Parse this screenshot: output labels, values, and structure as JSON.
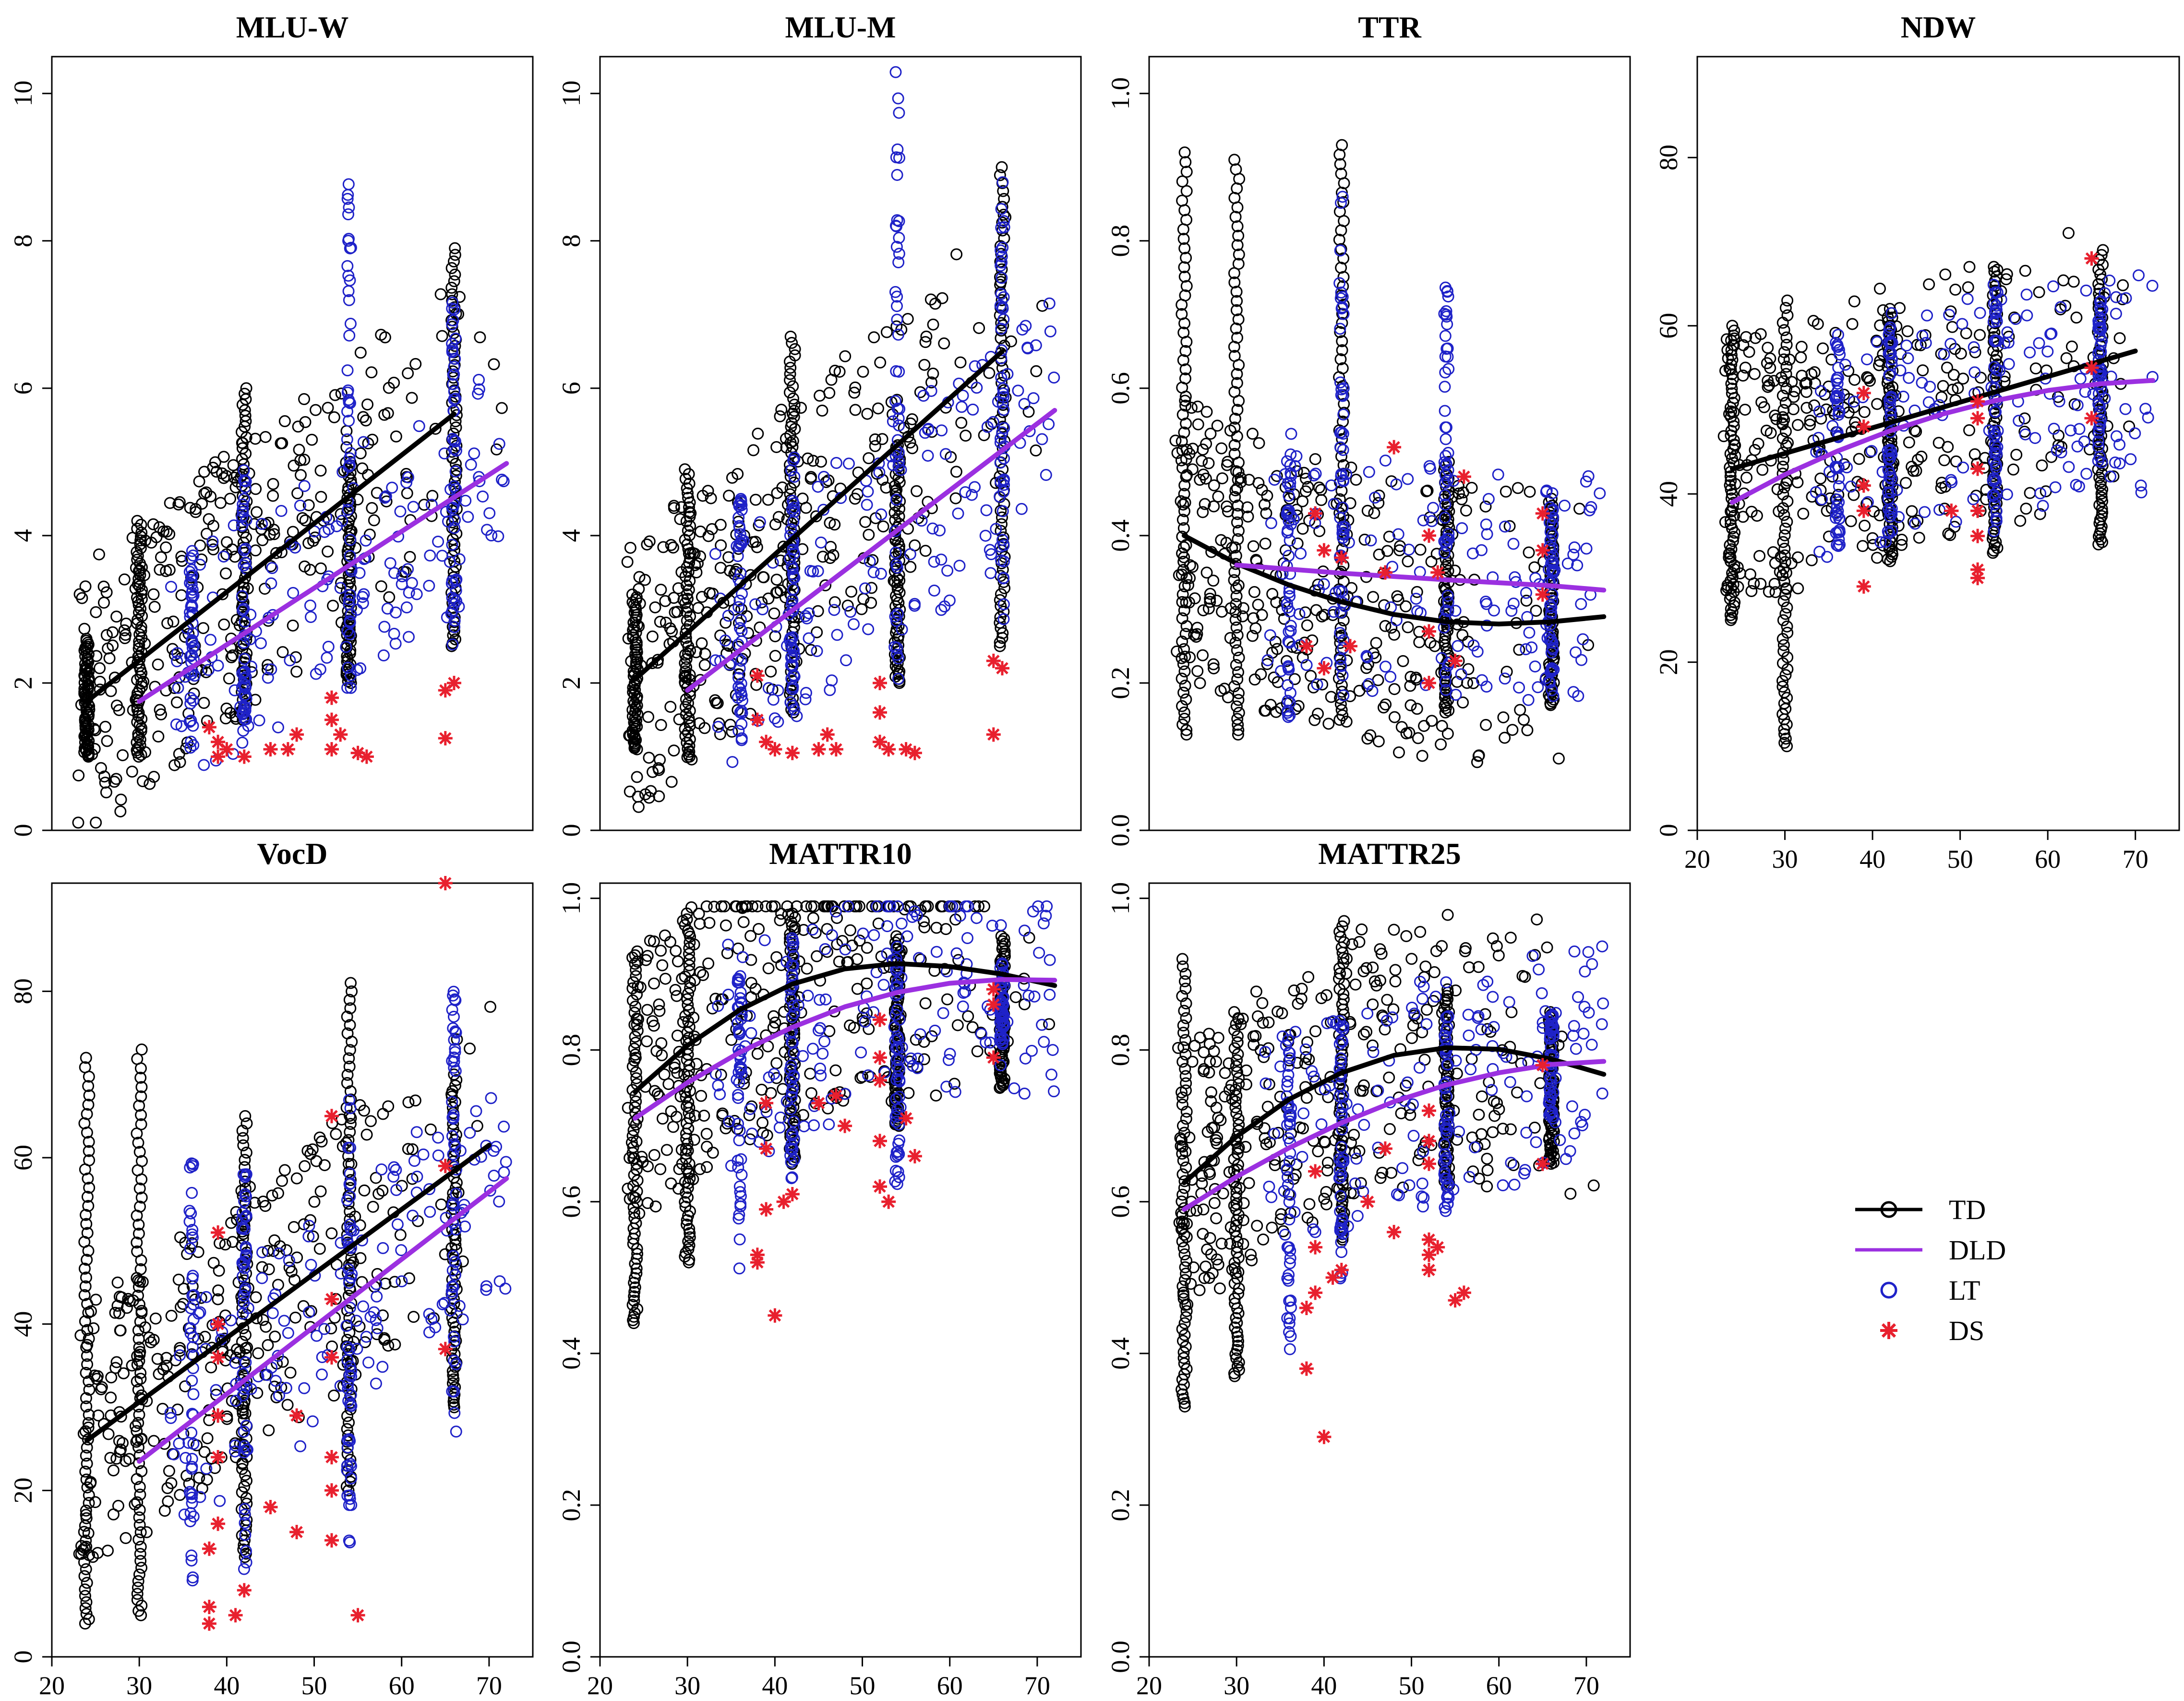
{
  "colors": {
    "TD": "#000000",
    "DLD": "#9b30e0",
    "LT": "#1f22c8",
    "DS": "#e8202e"
  },
  "legend": {
    "items": [
      {
        "label": "TD",
        "kind": "line-circle",
        "color": "#000000"
      },
      {
        "label": "DLD",
        "kind": "line",
        "color": "#9b30e0"
      },
      {
        "label": "LT",
        "kind": "circle",
        "color": "#1f22c8"
      },
      {
        "label": "DS",
        "kind": "star",
        "color": "#e8202e"
      }
    ]
  },
  "chart_data": [
    {
      "type": "scatter",
      "title": "MLU-W",
      "xlim": [
        20,
        75
      ],
      "ylim": [
        0,
        10.5
      ],
      "yticks": [
        0,
        2,
        4,
        6,
        8,
        10
      ],
      "xticks": [],
      "td_columns": [
        {
          "x": 24,
          "ymin": 1.0,
          "ymax": 2.6
        },
        {
          "x": 30,
          "ymin": 1.0,
          "ymax": 4.2
        },
        {
          "x": 42,
          "ymin": 1.5,
          "ymax": 6.0
        },
        {
          "x": 54,
          "ymin": 2.0,
          "ymax": 5.0
        },
        {
          "x": 66,
          "ymin": 2.5,
          "ymax": 7.9
        }
      ],
      "lt_columns": [
        {
          "x": 36,
          "ymin": 1.1,
          "ymax": 3.8
        },
        {
          "x": 42,
          "ymin": 1.5,
          "ymax": 4.9
        },
        {
          "x": 54,
          "ymin": 1.8,
          "ymax": 8.8
        },
        {
          "x": 66,
          "ymin": 2.5,
          "ymax": 7.2
        }
      ],
      "ds_points": [
        [
          38,
          1.4
        ],
        [
          39,
          1.2
        ],
        [
          39,
          1.0
        ],
        [
          40,
          1.1
        ],
        [
          42,
          1.0
        ],
        [
          45,
          1.1
        ],
        [
          47,
          1.1
        ],
        [
          48,
          1.3
        ],
        [
          52,
          1.1
        ],
        [
          52,
          1.5
        ],
        [
          52,
          1.8
        ],
        [
          53,
          1.3
        ],
        [
          55,
          1.05
        ],
        [
          56,
          1.0
        ],
        [
          65,
          1.9
        ],
        [
          65,
          1.25
        ],
        [
          66,
          2.0
        ]
      ],
      "td_line": [
        [
          24,
          1.75
        ],
        [
          66,
          5.65
        ]
      ],
      "dld_line": [
        [
          30,
          1.75
        ],
        [
          72,
          4.98
        ]
      ]
    },
    {
      "type": "scatter",
      "title": "MLU-M",
      "xlim": [
        20,
        75
      ],
      "ylim": [
        0,
        10.5
      ],
      "yticks": [
        0,
        2,
        4,
        6,
        8,
        10
      ],
      "xticks": [],
      "td_columns": [
        {
          "x": 24,
          "ymin": 1.1,
          "ymax": 3.2
        },
        {
          "x": 30,
          "ymin": 1.0,
          "ymax": 4.9
        },
        {
          "x": 42,
          "ymin": 1.6,
          "ymax": 6.7
        },
        {
          "x": 54,
          "ymin": 2.0,
          "ymax": 5.2
        },
        {
          "x": 66,
          "ymin": 2.5,
          "ymax": 9.0
        }
      ],
      "lt_columns": [
        {
          "x": 36,
          "ymin": 1.2,
          "ymax": 4.5
        },
        {
          "x": 42,
          "ymin": 1.6,
          "ymax": 5.1
        },
        {
          "x": 54,
          "ymin": 2.0,
          "ymax": 10.3
        },
        {
          "x": 66,
          "ymin": 2.6,
          "ymax": 9.0
        }
      ],
      "ds_points": [
        [
          38,
          1.5
        ],
        [
          38,
          2.1
        ],
        [
          39,
          1.2
        ],
        [
          40,
          1.1
        ],
        [
          42,
          1.05
        ],
        [
          45,
          1.1
        ],
        [
          46,
          1.3
        ],
        [
          47,
          1.1
        ],
        [
          52,
          1.2
        ],
        [
          52,
          1.6
        ],
        [
          52,
          2.0
        ],
        [
          53,
          1.1
        ],
        [
          55,
          1.1
        ],
        [
          56,
          1.05
        ],
        [
          65,
          2.3
        ],
        [
          65,
          1.3
        ],
        [
          66,
          2.2
        ]
      ],
      "td_line": [
        [
          24,
          2.05
        ],
        [
          66,
          6.5
        ]
      ],
      "dld_line": [
        [
          30,
          1.9
        ],
        [
          72,
          5.7
        ]
      ]
    },
    {
      "type": "scatter",
      "title": "TTR",
      "xlim": [
        20,
        75
      ],
      "ylim": [
        0,
        1.05
      ],
      "yticks": [
        0.0,
        0.2,
        0.4,
        0.6,
        0.8,
        1.0
      ],
      "xticks": [],
      "td_columns": [
        {
          "x": 24,
          "ymin": 0.13,
          "ymax": 0.92
        },
        {
          "x": 30,
          "ymin": 0.13,
          "ymax": 0.91
        },
        {
          "x": 42,
          "ymin": 0.15,
          "ymax": 0.93
        },
        {
          "x": 54,
          "ymin": 0.16,
          "ymax": 0.5
        },
        {
          "x": 66,
          "ymin": 0.17,
          "ymax": 0.45
        }
      ],
      "lt_columns": [
        {
          "x": 36,
          "ymin": 0.15,
          "ymax": 0.55
        },
        {
          "x": 42,
          "ymin": 0.18,
          "ymax": 0.87
        },
        {
          "x": 54,
          "ymin": 0.2,
          "ymax": 0.75
        },
        {
          "x": 66,
          "ymin": 0.18,
          "ymax": 0.44
        }
      ],
      "ds_points": [
        [
          38,
          0.25
        ],
        [
          39,
          0.43
        ],
        [
          40,
          0.38
        ],
        [
          40,
          0.22
        ],
        [
          42,
          0.37
        ],
        [
          43,
          0.25
        ],
        [
          47,
          0.35
        ],
        [
          48,
          0.52
        ],
        [
          52,
          0.4
        ],
        [
          52,
          0.27
        ],
        [
          52,
          0.2
        ],
        [
          53,
          0.35
        ],
        [
          55,
          0.23
        ],
        [
          56,
          0.48
        ],
        [
          65,
          0.43
        ],
        [
          65,
          0.38
        ],
        [
          65,
          0.32
        ]
      ],
      "td_curve": [
        [
          24,
          0.4
        ],
        [
          30,
          0.362
        ],
        [
          36,
          0.333
        ],
        [
          42,
          0.31
        ],
        [
          48,
          0.293
        ],
        [
          54,
          0.283
        ],
        [
          60,
          0.28
        ],
        [
          66,
          0.283
        ],
        [
          72,
          0.29
        ]
      ],
      "dld_curve": [
        [
          30,
          0.36
        ],
        [
          42,
          0.349
        ],
        [
          54,
          0.34
        ],
        [
          66,
          0.332
        ],
        [
          72,
          0.326
        ]
      ]
    },
    {
      "type": "scatter",
      "title": "NDW",
      "xlim": [
        20,
        75
      ],
      "ylim": [
        0,
        92
      ],
      "yticks": [
        0,
        20,
        40,
        60,
        80
      ],
      "xticks": [
        20,
        30,
        40,
        50,
        60,
        70
      ],
      "td_columns": [
        {
          "x": 24,
          "ymin": 25,
          "ymax": 60
        },
        {
          "x": 30,
          "ymin": 10,
          "ymax": 63
        },
        {
          "x": 42,
          "ymin": 32,
          "ymax": 62
        },
        {
          "x": 54,
          "ymin": 33,
          "ymax": 67
        },
        {
          "x": 66,
          "ymin": 34,
          "ymax": 69
        }
      ],
      "lt_columns": [
        {
          "x": 36,
          "ymin": 33,
          "ymax": 58
        },
        {
          "x": 42,
          "ymin": 35,
          "ymax": 62
        },
        {
          "x": 54,
          "ymin": 35,
          "ymax": 65
        },
        {
          "x": 66,
          "ymin": 43,
          "ymax": 63
        }
      ],
      "ds_points": [
        [
          39,
          52
        ],
        [
          39,
          48
        ],
        [
          39,
          41
        ],
        [
          39,
          38
        ],
        [
          39,
          29
        ],
        [
          49,
          38
        ],
        [
          52,
          51
        ],
        [
          52,
          49
        ],
        [
          52,
          43
        ],
        [
          52,
          38
        ],
        [
          52,
          35
        ],
        [
          52,
          31
        ],
        [
          52,
          30
        ],
        [
          65,
          68
        ],
        [
          65,
          55
        ],
        [
          65,
          49
        ]
      ],
      "td_line": [
        [
          24,
          43
        ],
        [
          70,
          57
        ]
      ],
      "dld_curve": [
        [
          24,
          39
        ],
        [
          30,
          42.3
        ],
        [
          36,
          45.1
        ],
        [
          42,
          47.5
        ],
        [
          48,
          49.5
        ],
        [
          54,
          51.1
        ],
        [
          60,
          52.3
        ],
        [
          66,
          53.1
        ],
        [
          72,
          53.5
        ]
      ]
    },
    {
      "type": "scatter",
      "title": "VocD",
      "xlim": [
        20,
        75
      ],
      "ylim": [
        0,
        93
      ],
      "yticks": [
        0,
        20,
        40,
        60,
        80
      ],
      "xticks": [
        20,
        30,
        40,
        50,
        60,
        70
      ],
      "td_columns": [
        {
          "x": 24,
          "ymin": 4,
          "ymax": 72
        },
        {
          "x": 30,
          "ymin": 5,
          "ymax": 73
        },
        {
          "x": 42,
          "ymin": 12,
          "ymax": 65
        },
        {
          "x": 54,
          "ymin": 20,
          "ymax": 81
        },
        {
          "x": 66,
          "ymin": 30,
          "ymax": 70
        }
      ],
      "lt_columns": [
        {
          "x": 36,
          "ymin": 8,
          "ymax": 62
        },
        {
          "x": 42,
          "ymin": 10,
          "ymax": 60
        },
        {
          "x": 54,
          "ymin": 13,
          "ymax": 67
        },
        {
          "x": 66,
          "ymin": 25,
          "ymax": 80
        }
      ],
      "ds_points": [
        [
          38,
          4
        ],
        [
          38,
          6
        ],
        [
          38,
          13
        ],
        [
          39,
          16
        ],
        [
          39,
          24
        ],
        [
          39,
          29
        ],
        [
          39,
          36
        ],
        [
          39,
          40
        ],
        [
          39,
          51
        ],
        [
          41,
          5
        ],
        [
          42,
          8
        ],
        [
          45,
          18
        ],
        [
          48,
          15
        ],
        [
          48,
          29
        ],
        [
          52,
          14
        ],
        [
          52,
          20
        ],
        [
          52,
          24
        ],
        [
          52,
          36
        ],
        [
          52,
          43
        ],
        [
          52,
          65
        ],
        [
          55,
          5
        ],
        [
          65,
          37
        ],
        [
          65,
          59
        ],
        [
          65,
          93
        ]
      ],
      "td_line": [
        [
          24,
          26
        ],
        [
          70,
          61.5
        ]
      ],
      "dld_line": [
        [
          30,
          23.5
        ],
        [
          72,
          57.5
        ]
      ]
    },
    {
      "type": "scatter",
      "title": "MATTR10",
      "xlim": [
        20,
        75
      ],
      "ylim": [
        0,
        1.02
      ],
      "yticks": [
        0.0,
        0.2,
        0.4,
        0.6,
        0.8,
        1.0
      ],
      "xticks": [
        20,
        30,
        40,
        50,
        60,
        70
      ],
      "td_columns": [
        {
          "x": 24,
          "ymin": 0.44,
          "ymax": 0.93
        },
        {
          "x": 30,
          "ymin": 0.52,
          "ymax": 0.98
        },
        {
          "x": 42,
          "ymin": 0.65,
          "ymax": 0.98
        },
        {
          "x": 54,
          "ymin": 0.7,
          "ymax": 0.95
        },
        {
          "x": 66,
          "ymin": 0.75,
          "ymax": 0.95
        }
      ],
      "lt_columns": [
        {
          "x": 36,
          "ymin": 0.5,
          "ymax": 0.9
        },
        {
          "x": 42,
          "ymin": 0.6,
          "ymax": 0.95
        },
        {
          "x": 54,
          "ymin": 0.62,
          "ymax": 0.94
        },
        {
          "x": 66,
          "ymin": 0.8,
          "ymax": 0.92
        }
      ],
      "ds_points": [
        [
          38,
          0.52
        ],
        [
          38,
          0.53
        ],
        [
          39,
          0.59
        ],
        [
          39,
          0.67
        ],
        [
          39,
          0.73
        ],
        [
          40,
          0.45
        ],
        [
          41,
          0.6
        ],
        [
          42,
          0.61
        ],
        [
          45,
          0.73
        ],
        [
          47,
          0.74
        ],
        [
          48,
          0.7
        ],
        [
          52,
          0.62
        ],
        [
          52,
          0.68
        ],
        [
          52,
          0.76
        ],
        [
          52,
          0.79
        ],
        [
          52,
          0.84
        ],
        [
          53,
          0.6
        ],
        [
          55,
          0.71
        ],
        [
          56,
          0.66
        ],
        [
          65,
          0.79
        ],
        [
          65,
          0.86
        ],
        [
          65,
          0.88
        ]
      ],
      "td_curve": [
        [
          24,
          0.745
        ],
        [
          30,
          0.806
        ],
        [
          36,
          0.853
        ],
        [
          42,
          0.887
        ],
        [
          48,
          0.907
        ],
        [
          54,
          0.914
        ],
        [
          60,
          0.91
        ],
        [
          66,
          0.9
        ],
        [
          72,
          0.885
        ]
      ],
      "dld_curve": [
        [
          24,
          0.71
        ],
        [
          30,
          0.757
        ],
        [
          36,
          0.797
        ],
        [
          42,
          0.83
        ],
        [
          48,
          0.857
        ],
        [
          54,
          0.876
        ],
        [
          60,
          0.888
        ],
        [
          66,
          0.893
        ],
        [
          72,
          0.892
        ]
      ]
    },
    {
      "type": "scatter",
      "title": "MATTR25",
      "xlim": [
        20,
        75
      ],
      "ylim": [
        0,
        1.02
      ],
      "yticks": [
        0.0,
        0.2,
        0.4,
        0.6,
        0.8,
        1.0
      ],
      "xticks": [
        20,
        30,
        40,
        50,
        60,
        70
      ],
      "td_columns": [
        {
          "x": 24,
          "ymin": 0.33,
          "ymax": 0.92
        },
        {
          "x": 30,
          "ymin": 0.37,
          "ymax": 0.85
        },
        {
          "x": 42,
          "ymin": 0.55,
          "ymax": 0.97
        },
        {
          "x": 54,
          "ymin": 0.62,
          "ymax": 0.88
        },
        {
          "x": 66,
          "ymin": 0.65,
          "ymax": 0.85
        }
      ],
      "lt_columns": [
        {
          "x": 36,
          "ymin": 0.4,
          "ymax": 0.82
        },
        {
          "x": 42,
          "ymin": 0.48,
          "ymax": 0.85
        },
        {
          "x": 54,
          "ymin": 0.58,
          "ymax": 0.85
        },
        {
          "x": 66,
          "ymin": 0.7,
          "ymax": 0.85
        }
      ],
      "ds_points": [
        [
          38,
          0.38
        ],
        [
          38,
          0.46
        ],
        [
          39,
          0.48
        ],
        [
          39,
          0.54
        ],
        [
          39,
          0.64
        ],
        [
          40,
          0.29
        ],
        [
          41,
          0.5
        ],
        [
          42,
          0.51
        ],
        [
          45,
          0.6
        ],
        [
          47,
          0.67
        ],
        [
          48,
          0.56
        ],
        [
          52,
          0.51
        ],
        [
          52,
          0.53
        ],
        [
          52,
          0.55
        ],
        [
          52,
          0.65
        ],
        [
          52,
          0.68
        ],
        [
          52,
          0.72
        ],
        [
          53,
          0.54
        ],
        [
          55,
          0.47
        ],
        [
          56,
          0.48
        ],
        [
          65,
          0.65
        ],
        [
          65,
          0.78
        ]
      ],
      "td_curve": [
        [
          24,
          0.625
        ],
        [
          30,
          0.686
        ],
        [
          36,
          0.735
        ],
        [
          42,
          0.77
        ],
        [
          48,
          0.793
        ],
        [
          54,
          0.803
        ],
        [
          60,
          0.801
        ],
        [
          66,
          0.788
        ],
        [
          72,
          0.768
        ]
      ],
      "dld_curve": [
        [
          24,
          0.59
        ],
        [
          30,
          0.633
        ],
        [
          36,
          0.671
        ],
        [
          42,
          0.704
        ],
        [
          48,
          0.732
        ],
        [
          54,
          0.754
        ],
        [
          60,
          0.77
        ],
        [
          66,
          0.781
        ],
        [
          72,
          0.785
        ]
      ]
    }
  ]
}
